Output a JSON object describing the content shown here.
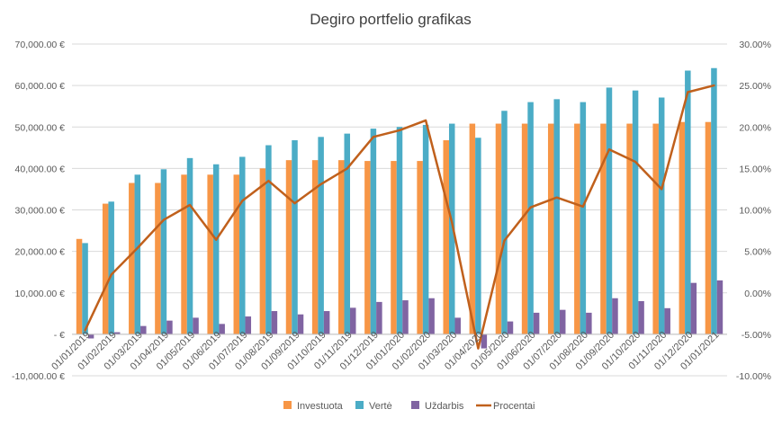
{
  "chart_data": {
    "type": "bar",
    "title": "Degiro portfelio grafikas",
    "categories": [
      "01/01/2019",
      "01/02/2019",
      "01/03/2019",
      "01/04/2019",
      "01/05/2019",
      "01/06/2019",
      "01/07/2019",
      "01/08/2019",
      "01/09/2019",
      "01/10/2019",
      "01/11/2019",
      "01/12/2019",
      "01/01/2020",
      "01/02/2020",
      "01/03/2020",
      "01/04/2020",
      "01/05/2020",
      "01/06/2020",
      "01/07/2020",
      "01/08/2020",
      "01/09/2020",
      "01/10/2020",
      "01/11/2020",
      "01/12/2020",
      "01/01/2021"
    ],
    "y_left": {
      "min": -10000,
      "max": 70000,
      "step": 10000,
      "tick_labels": [
        "-10,000.00 €",
        "- €",
        "10,000.00 €",
        "20,000.00 €",
        "30,000.00 €",
        "40,000.00 €",
        "50,000.00 €",
        "60,000.00 €",
        "70,000.00 €"
      ]
    },
    "y_right": {
      "min": -0.1,
      "max": 0.3,
      "step": 0.05,
      "tick_labels": [
        "-10.00%",
        "-5.00%",
        "0.00%",
        "5.00%",
        "10.00%",
        "15.00%",
        "20.00%",
        "25.00%",
        "30.00%"
      ]
    },
    "grid": true,
    "legend_position": "bottom",
    "series": [
      {
        "name": "Investuota",
        "kind": "bar",
        "axis": "left",
        "color": "#F79646",
        "values": [
          23000,
          31500,
          36500,
          36500,
          38500,
          38500,
          38500,
          40000,
          42000,
          42000,
          42000,
          41800,
          41800,
          41800,
          46800,
          50800,
          50800,
          50800,
          50800,
          50800,
          50800,
          50800,
          50800,
          51200,
          51200
        ]
      },
      {
        "name": "Vertė",
        "kind": "bar",
        "axis": "left",
        "color": "#4BACC6",
        "values": [
          22000,
          32000,
          38500,
          39800,
          42500,
          41000,
          42800,
          45600,
          46800,
          47600,
          48400,
          49600,
          50000,
          50500,
          50800,
          47400,
          53900,
          56000,
          56700,
          56000,
          59500,
          58800,
          57100,
          63600,
          64200
        ]
      },
      {
        "name": "Uždarbis",
        "kind": "bar",
        "axis": "left",
        "color": "#8064A2",
        "values": [
          -1000,
          500,
          2000,
          3300,
          4000,
          2500,
          4300,
          5600,
          4800,
          5600,
          6400,
          7800,
          8200,
          8700,
          4000,
          -3400,
          3100,
          5200,
          5900,
          5200,
          8700,
          8000,
          6300,
          12400,
          13000
        ]
      },
      {
        "name": "Procentai",
        "kind": "line",
        "axis": "right",
        "color": "#C0601C",
        "values": [
          -0.045,
          0.022,
          0.054,
          0.088,
          0.106,
          0.064,
          0.111,
          0.135,
          0.108,
          0.131,
          0.15,
          0.188,
          0.196,
          0.208,
          0.085,
          -0.067,
          0.063,
          0.103,
          0.115,
          0.104,
          0.173,
          0.158,
          0.125,
          0.242,
          0.25
        ]
      }
    ]
  }
}
